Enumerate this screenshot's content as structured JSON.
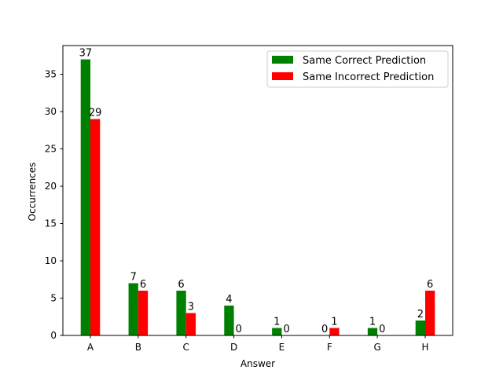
{
  "chart_data": {
    "type": "bar",
    "xlabel": "Answer",
    "ylabel": "Occurrences",
    "categories": [
      "A",
      "B",
      "C",
      "D",
      "E",
      "F",
      "G",
      "H"
    ],
    "ylim": [
      0,
      38.85
    ],
    "yticks": [
      0,
      5,
      10,
      15,
      20,
      25,
      30,
      35
    ],
    "legend_position": "top-right",
    "grid": false,
    "series": [
      {
        "name": "Same Correct Prediction",
        "color": "#008000",
        "values": [
          37,
          7,
          6,
          4,
          1,
          0,
          1,
          2
        ]
      },
      {
        "name": "Same Incorrect Prediction",
        "color": "#ff0000",
        "values": [
          29,
          6,
          3,
          0,
          0,
          1,
          0,
          6
        ]
      }
    ]
  }
}
